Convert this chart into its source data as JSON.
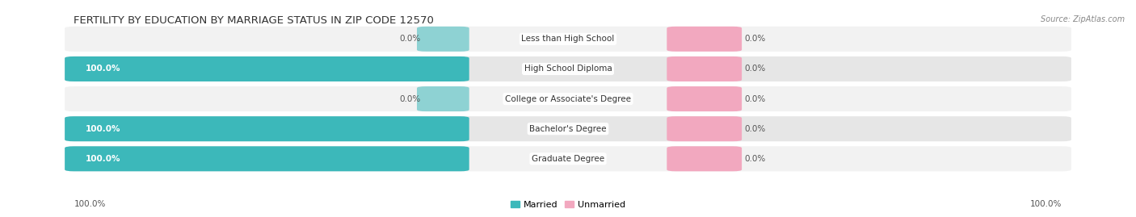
{
  "title": "FERTILITY BY EDUCATION BY MARRIAGE STATUS IN ZIP CODE 12570",
  "source": "Source: ZipAtlas.com",
  "categories": [
    "Less than High School",
    "High School Diploma",
    "College or Associate's Degree",
    "Bachelor's Degree",
    "Graduate Degree"
  ],
  "married_pct": [
    0.0,
    100.0,
    0.0,
    100.0,
    100.0
  ],
  "unmarried_pct": [
    0.0,
    0.0,
    0.0,
    0.0,
    0.0
  ],
  "married_color": "#3cb8ba",
  "unmarried_color": "#f2a8bf",
  "bg_light": "#f2f2f2",
  "bg_dark": "#e6e6e6",
  "title_fontsize": 9.5,
  "label_fontsize": 7.5,
  "tick_fontsize": 7.5,
  "legend_fontsize": 8,
  "source_fontsize": 7,
  "bottom_left_label": "100.0%",
  "bottom_right_label": "100.0%"
}
